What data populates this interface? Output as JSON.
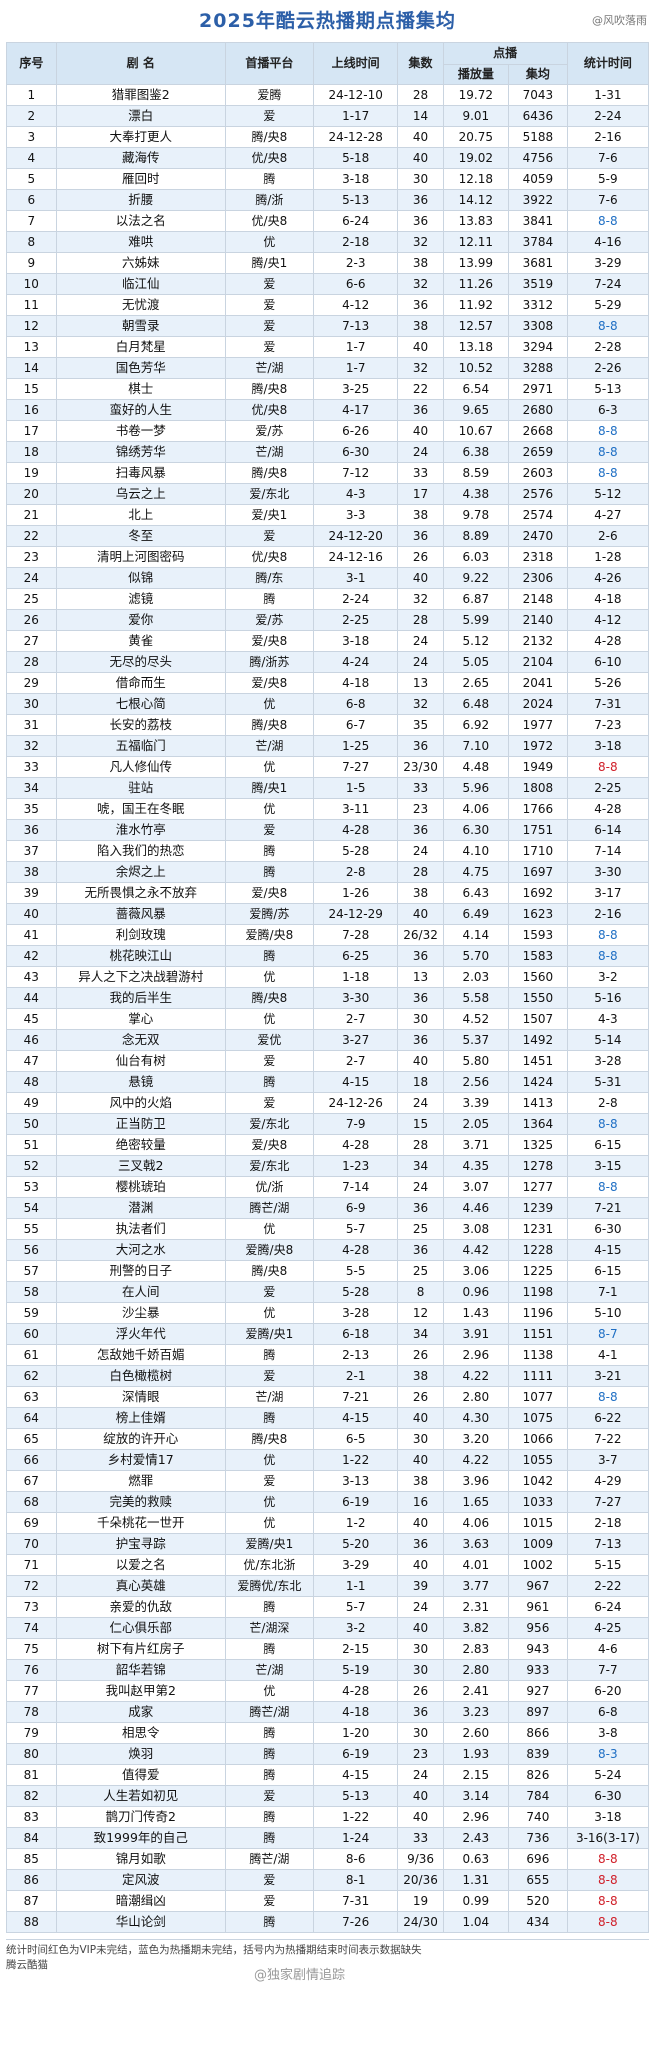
{
  "title": "2025年酷云热播期点播集均",
  "watermark_top": "@风吹落雨",
  "header": {
    "col_no": "序号",
    "col_name": "剧  名",
    "col_platform": "首播平台",
    "col_date": "上线时间",
    "col_eps": "集数",
    "col_views_group": "点播",
    "col_views": "播放量",
    "col_avg": "集均",
    "col_end": "统计时间"
  },
  "rows": [
    [
      "1",
      "猎罪图鉴2",
      "爱腾",
      "24-12-10",
      "28",
      "19.72",
      "7043",
      "1-31",
      "n"
    ],
    [
      "2",
      "漂白",
      "爱",
      "1-17",
      "14",
      "9.01",
      "6436",
      "2-24",
      "n"
    ],
    [
      "3",
      "大奉打更人",
      "腾/央8",
      "24-12-28",
      "40",
      "20.75",
      "5188",
      "2-16",
      "n"
    ],
    [
      "4",
      "藏海传",
      "优/央8",
      "5-18",
      "40",
      "19.02",
      "4756",
      "7-6",
      "n"
    ],
    [
      "5",
      "雁回时",
      "腾",
      "3-18",
      "30",
      "12.18",
      "4059",
      "5-9",
      "n"
    ],
    [
      "6",
      "折腰",
      "腾/浙",
      "5-13",
      "36",
      "14.12",
      "3922",
      "7-6",
      "n"
    ],
    [
      "7",
      "以法之名",
      "优/央8",
      "6-24",
      "36",
      "13.83",
      "3841",
      "8-8",
      "b"
    ],
    [
      "8",
      "难哄",
      "优",
      "2-18",
      "32",
      "12.11",
      "3784",
      "4-16",
      "n"
    ],
    [
      "9",
      "六姊妹",
      "腾/央1",
      "2-3",
      "38",
      "13.99",
      "3681",
      "3-29",
      "n"
    ],
    [
      "10",
      "临江仙",
      "爱",
      "6-6",
      "32",
      "11.26",
      "3519",
      "7-24",
      "n"
    ],
    [
      "11",
      "无忧渡",
      "爱",
      "4-12",
      "36",
      "11.92",
      "3312",
      "5-29",
      "n"
    ],
    [
      "12",
      "朝雪录",
      "爱",
      "7-13",
      "38",
      "12.57",
      "3308",
      "8-8",
      "b"
    ],
    [
      "13",
      "白月梵星",
      "爱",
      "1-7",
      "40",
      "13.18",
      "3294",
      "2-28",
      "n"
    ],
    [
      "14",
      "国色芳华",
      "芒/湖",
      "1-7",
      "32",
      "10.52",
      "3288",
      "2-26",
      "n"
    ],
    [
      "15",
      "棋士",
      "腾/央8",
      "3-25",
      "22",
      "6.54",
      "2971",
      "5-13",
      "n"
    ],
    [
      "16",
      "蛮好的人生",
      "优/央8",
      "4-17",
      "36",
      "9.65",
      "2680",
      "6-3",
      "n"
    ],
    [
      "17",
      "书卷一梦",
      "爱/苏",
      "6-26",
      "40",
      "10.67",
      "2668",
      "8-8",
      "b"
    ],
    [
      "18",
      "锦绣芳华",
      "芒/湖",
      "6-30",
      "24",
      "6.38",
      "2659",
      "8-8",
      "b"
    ],
    [
      "19",
      "扫毒风暴",
      "腾/央8",
      "7-12",
      "33",
      "8.59",
      "2603",
      "8-8",
      "b"
    ],
    [
      "20",
      "乌云之上",
      "爱/东北",
      "4-3",
      "17",
      "4.38",
      "2576",
      "5-12",
      "n"
    ],
    [
      "21",
      "北上",
      "爱/央1",
      "3-3",
      "38",
      "9.78",
      "2574",
      "4-27",
      "n"
    ],
    [
      "22",
      "冬至",
      "爱",
      "24-12-20",
      "36",
      "8.89",
      "2470",
      "2-6",
      "n"
    ],
    [
      "23",
      "清明上河图密码",
      "优/央8",
      "24-12-16",
      "26",
      "6.03",
      "2318",
      "1-28",
      "n"
    ],
    [
      "24",
      "似锦",
      "腾/东",
      "3-1",
      "40",
      "9.22",
      "2306",
      "4-26",
      "n"
    ],
    [
      "25",
      "滤镜",
      "腾",
      "2-24",
      "32",
      "6.87",
      "2148",
      "4-18",
      "n"
    ],
    [
      "26",
      "爱你",
      "爱/苏",
      "2-25",
      "28",
      "5.99",
      "2140",
      "4-12",
      "n"
    ],
    [
      "27",
      "黄雀",
      "爱/央8",
      "3-18",
      "24",
      "5.12",
      "2132",
      "4-28",
      "n"
    ],
    [
      "28",
      "无尽的尽头",
      "腾/浙苏",
      "4-24",
      "24",
      "5.05",
      "2104",
      "6-10",
      "n"
    ],
    [
      "29",
      "借命而生",
      "爱/央8",
      "4-18",
      "13",
      "2.65",
      "2041",
      "5-26",
      "n"
    ],
    [
      "30",
      "七根心简",
      "优",
      "6-8",
      "32",
      "6.48",
      "2024",
      "7-31",
      "n"
    ],
    [
      "31",
      "长安的荔枝",
      "腾/央8",
      "6-7",
      "35",
      "6.92",
      "1977",
      "7-23",
      "n"
    ],
    [
      "32",
      "五福临门",
      "芒/湖",
      "1-25",
      "36",
      "7.10",
      "1972",
      "3-18",
      "n"
    ],
    [
      "33",
      "凡人修仙传",
      "优",
      "7-27",
      "23/30",
      "4.48",
      "1949",
      "8-8",
      "r"
    ],
    [
      "34",
      "驻站",
      "腾/央1",
      "1-5",
      "33",
      "5.96",
      "1808",
      "2-25",
      "n"
    ],
    [
      "35",
      "唬，国王在冬眠",
      "优",
      "3-11",
      "23",
      "4.06",
      "1766",
      "4-28",
      "n"
    ],
    [
      "36",
      "淮水竹亭",
      "爱",
      "4-28",
      "36",
      "6.30",
      "1751",
      "6-14",
      "n"
    ],
    [
      "37",
      "陷入我们的热恋",
      "腾",
      "5-28",
      "24",
      "4.10",
      "1710",
      "7-14",
      "n"
    ],
    [
      "38",
      "余烬之上",
      "腾",
      "2-8",
      "28",
      "4.75",
      "1697",
      "3-30",
      "n"
    ],
    [
      "39",
      "无所畏惧之永不放弃",
      "爱/央8",
      "1-26",
      "38",
      "6.43",
      "1692",
      "3-17",
      "n"
    ],
    [
      "40",
      "蔷薇风暴",
      "爱腾/苏",
      "24-12-29",
      "40",
      "6.49",
      "1623",
      "2-16",
      "n"
    ],
    [
      "41",
      "利剑玫瑰",
      "爱腾/央8",
      "7-28",
      "26/32",
      "4.14",
      "1593",
      "8-8",
      "b"
    ],
    [
      "42",
      "桃花映江山",
      "腾",
      "6-25",
      "36",
      "5.70",
      "1583",
      "8-8",
      "b"
    ],
    [
      "43",
      "异人之下之决战碧游村",
      "优",
      "1-18",
      "13",
      "2.03",
      "1560",
      "3-2",
      "n"
    ],
    [
      "44",
      "我的后半生",
      "腾/央8",
      "3-30",
      "36",
      "5.58",
      "1550",
      "5-16",
      "n"
    ],
    [
      "45",
      "掌心",
      "优",
      "2-7",
      "30",
      "4.52",
      "1507",
      "4-3",
      "n"
    ],
    [
      "46",
      "念无双",
      "爱优",
      "3-27",
      "36",
      "5.37",
      "1492",
      "5-14",
      "n"
    ],
    [
      "47",
      "仙台有树",
      "爱",
      "2-7",
      "40",
      "5.80",
      "1451",
      "3-28",
      "n"
    ],
    [
      "48",
      "悬镜",
      "腾",
      "4-15",
      "18",
      "2.56",
      "1424",
      "5-31",
      "n"
    ],
    [
      "49",
      "风中的火焰",
      "爱",
      "24-12-26",
      "24",
      "3.39",
      "1413",
      "2-8",
      "n"
    ],
    [
      "50",
      "正当防卫",
      "爱/东北",
      "7-9",
      "15",
      "2.05",
      "1364",
      "8-8",
      "b"
    ],
    [
      "51",
      "绝密较量",
      "爱/央8",
      "4-28",
      "28",
      "3.71",
      "1325",
      "6-15",
      "n"
    ],
    [
      "52",
      "三叉戟2",
      "爱/东北",
      "1-23",
      "34",
      "4.35",
      "1278",
      "3-15",
      "n"
    ],
    [
      "53",
      "樱桃琥珀",
      "优/浙",
      "7-14",
      "24",
      "3.07",
      "1277",
      "8-8",
      "b"
    ],
    [
      "54",
      "潜渊",
      "腾芒/湖",
      "6-9",
      "36",
      "4.46",
      "1239",
      "7-21",
      "n"
    ],
    [
      "55",
      "执法者们",
      "优",
      "5-7",
      "25",
      "3.08",
      "1231",
      "6-30",
      "n"
    ],
    [
      "56",
      "大河之水",
      "爱腾/央8",
      "4-28",
      "36",
      "4.42",
      "1228",
      "4-15",
      "n"
    ],
    [
      "57",
      "刑警的日子",
      "腾/央8",
      "5-5",
      "25",
      "3.06",
      "1225",
      "6-15",
      "n"
    ],
    [
      "58",
      "在人间",
      "爱",
      "5-28",
      "8",
      "0.96",
      "1198",
      "7-1",
      "n"
    ],
    [
      "59",
      "沙尘暴",
      "优",
      "3-28",
      "12",
      "1.43",
      "1196",
      "5-10",
      "n"
    ],
    [
      "60",
      "浮火年代",
      "爱腾/央1",
      "6-18",
      "34",
      "3.91",
      "1151",
      "8-7",
      "b"
    ],
    [
      "61",
      "怎敌她千娇百媚",
      "腾",
      "2-13",
      "26",
      "2.96",
      "1138",
      "4-1",
      "n"
    ],
    [
      "62",
      "白色橄榄树",
      "爱",
      "2-1",
      "38",
      "4.22",
      "1111",
      "3-21",
      "n"
    ],
    [
      "63",
      "深情眼",
      "芒/湖",
      "7-21",
      "26",
      "2.80",
      "1077",
      "8-8",
      "b"
    ],
    [
      "64",
      "榜上佳婿",
      "腾",
      "4-15",
      "40",
      "4.30",
      "1075",
      "6-22",
      "n"
    ],
    [
      "65",
      "绽放的许开心",
      "腾/央8",
      "6-5",
      "30",
      "3.20",
      "1066",
      "7-22",
      "n"
    ],
    [
      "66",
      "乡村爱情17",
      "优",
      "1-22",
      "40",
      "4.22",
      "1055",
      "3-7",
      "n"
    ],
    [
      "67",
      "燃罪",
      "爱",
      "3-13",
      "38",
      "3.96",
      "1042",
      "4-29",
      "n"
    ],
    [
      "68",
      "完美的救赎",
      "优",
      "6-19",
      "16",
      "1.65",
      "1033",
      "7-27",
      "n"
    ],
    [
      "69",
      "千朵桃花一世开",
      "优",
      "1-2",
      "40",
      "4.06",
      "1015",
      "2-18",
      "n"
    ],
    [
      "70",
      "护宝寻踪",
      "爱腾/央1",
      "5-20",
      "36",
      "3.63",
      "1009",
      "7-13",
      "n"
    ],
    [
      "71",
      "以爱之名",
      "优/东北浙",
      "3-29",
      "40",
      "4.01",
      "1002",
      "5-15",
      "n"
    ],
    [
      "72",
      "真心英雄",
      "爱腾优/东北",
      "1-1",
      "39",
      "3.77",
      "967",
      "2-22",
      "n"
    ],
    [
      "73",
      "亲爱的仇敌",
      "腾",
      "5-7",
      "24",
      "2.31",
      "961",
      "6-24",
      "n"
    ],
    [
      "74",
      "仁心俱乐部",
      "芒/湖深",
      "3-2",
      "40",
      "3.82",
      "956",
      "4-25",
      "n"
    ],
    [
      "75",
      "树下有片红房子",
      "腾",
      "2-15",
      "30",
      "2.83",
      "943",
      "4-6",
      "n"
    ],
    [
      "76",
      "韶华若锦",
      "芒/湖",
      "5-19",
      "30",
      "2.80",
      "933",
      "7-7",
      "n"
    ],
    [
      "77",
      "我叫赵甲第2",
      "优",
      "4-28",
      "26",
      "2.41",
      "927",
      "6-20",
      "n"
    ],
    [
      "78",
      "成家",
      "腾芒/湖",
      "4-18",
      "36",
      "3.23",
      "897",
      "6-8",
      "n"
    ],
    [
      "79",
      "相思令",
      "腾",
      "1-20",
      "30",
      "2.60",
      "866",
      "3-8",
      "n"
    ],
    [
      "80",
      "焕羽",
      "腾",
      "6-19",
      "23",
      "1.93",
      "839",
      "8-3",
      "b"
    ],
    [
      "81",
      "值得爱",
      "腾",
      "4-15",
      "24",
      "2.15",
      "826",
      "5-24",
      "n"
    ],
    [
      "82",
      "人生若如初见",
      "爱",
      "5-13",
      "40",
      "3.14",
      "784",
      "6-30",
      "n"
    ],
    [
      "83",
      "鹊刀门传奇2",
      "腾",
      "1-22",
      "40",
      "2.96",
      "740",
      "3-18",
      "n"
    ],
    [
      "84",
      "致1999年的自己",
      "腾",
      "1-24",
      "33",
      "2.43",
      "736",
      "3-16(3-17)",
      "n"
    ],
    [
      "85",
      "锦月如歌",
      "腾芒/湖",
      "8-6",
      "9/36",
      "0.63",
      "696",
      "8-8",
      "r"
    ],
    [
      "86",
      "定风波",
      "爱",
      "8-1",
      "20/36",
      "1.31",
      "655",
      "8-8",
      "r"
    ],
    [
      "87",
      "暗潮缉凶",
      "爱",
      "7-31",
      "19",
      "0.99",
      "520",
      "8-8",
      "r"
    ],
    [
      "88",
      "华山论剑",
      "腾",
      "7-26",
      "24/30",
      "1.04",
      "434",
      "8-8",
      "r"
    ]
  ],
  "footer": {
    "line1": "统计时间红色为VIP未完结，蓝色为热播期未完结，括号内为热播期结束时间表示数据缺失",
    "line2": "腾云酷猫",
    "watermark": "@独家剧情追踪"
  }
}
